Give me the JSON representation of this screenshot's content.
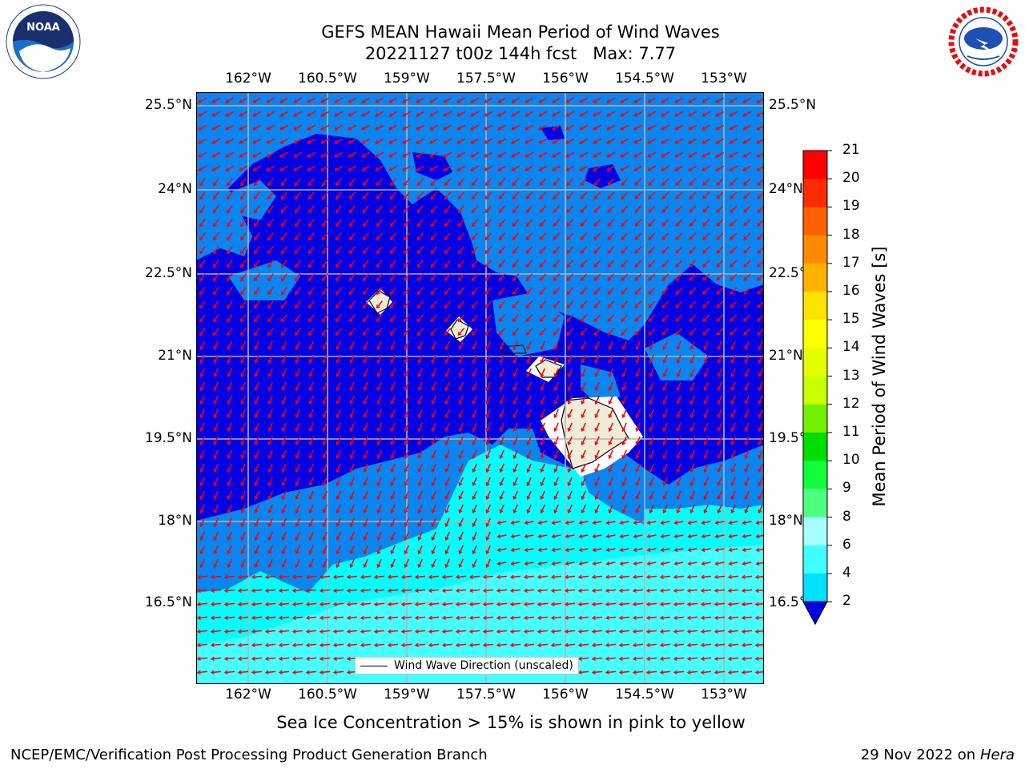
{
  "header": {
    "title_line1": "GEFS MEAN Hawaii Mean Period of Wind Waves",
    "title_line2": "20221127 t00z 144h fcst   Max: 7.77"
  },
  "logos": {
    "left": "noaa-logo",
    "right": "nws-logo"
  },
  "map": {
    "lon_labels": [
      "162°W",
      "160.5°W",
      "159°W",
      "157.5°W",
      "156°W",
      "154.5°W",
      "153°W"
    ],
    "lat_labels": [
      "25.5°N",
      "24°N",
      "22.5°N",
      "21°N",
      "19.5°N",
      "18°N",
      "16.5°N"
    ],
    "legend_label": "Wind Wave Direction (unscaled)",
    "colors": {
      "deep": "#0000e6",
      "mid": "#0a86f0",
      "cyan": "#00ffff",
      "light_cyan": "#44ffff",
      "land": "#efedd8",
      "arrow": "#ff0000",
      "grid": "#b4b4b4"
    }
  },
  "colorbar": {
    "title": "Mean Period of Wind Waves [s]",
    "ticks": [
      "2",
      "4",
      "6",
      "8",
      "9",
      "10",
      "11",
      "12",
      "13",
      "14",
      "15",
      "16",
      "17",
      "18",
      "19",
      "20",
      "21"
    ],
    "colors": [
      "#0073ff",
      "#00e1ff",
      "#40ffff",
      "#a8ffff",
      "#4dff80",
      "#11ff3b",
      "#00dd00",
      "#72f000",
      "#c7ff00",
      "#e6ff00",
      "#ffff00",
      "#ffe300",
      "#ffb200",
      "#ff8a00",
      "#ff6100",
      "#ff2a00",
      "#ff0000"
    ],
    "extend_color": "#0000e6"
  },
  "caption": "Sea Ice Concentration > 15% is shown in pink to yellow",
  "footer": {
    "left": "NCEP/EMC/Verification Post Processing Product Generation Branch",
    "right_prefix": "29 Nov 2022 on",
    "right_host": "Hera"
  }
}
